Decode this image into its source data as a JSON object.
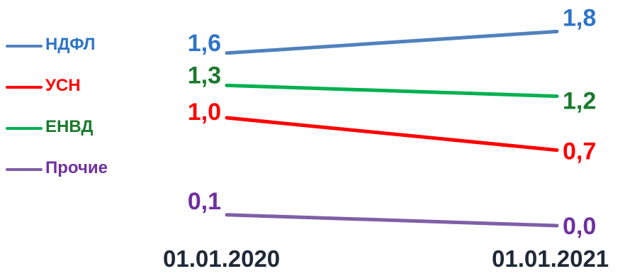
{
  "chart_data": {
    "type": "line",
    "title": "",
    "title_cut_fragment": "...",
    "x": [
      "01.01.2020",
      "01.01.2021"
    ],
    "series": [
      {
        "name": "НДФЛ",
        "color": "#4f81bd",
        "values": [
          1.6,
          1.8
        ],
        "labels": [
          "1,6",
          "1,8"
        ]
      },
      {
        "name": "УСН",
        "color": "#ff0000",
        "values": [
          1.0,
          0.7
        ],
        "labels": [
          "1,0",
          "0,7"
        ]
      },
      {
        "name": "ЕНВД",
        "color": "#00b050",
        "values": [
          1.3,
          1.2
        ],
        "labels": [
          "1,3",
          "1,2"
        ]
      },
      {
        "name": "Прочие",
        "color": "#7f5fa6",
        "values": [
          0.1,
          0.0
        ],
        "labels": [
          "0,1",
          "0,0"
        ]
      }
    ],
    "label_colors": {
      "НДФЛ": "#2e75c8",
      "УСН": "#ff0000",
      "ЕНВД": "#1a7a2c",
      "Прочие": "#7030a0"
    },
    "legend_position": "left",
    "grid": false
  }
}
